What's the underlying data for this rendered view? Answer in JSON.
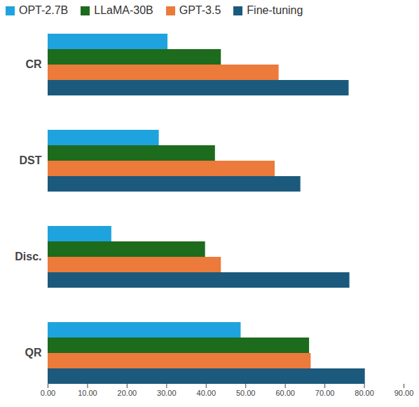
{
  "chart_data": {
    "type": "bar",
    "orientation": "horizontal",
    "categories": [
      "CR",
      "DST",
      "Disc.",
      "QR"
    ],
    "series": [
      {
        "name": "OPT-2.7B",
        "color": "#1fa3de",
        "values": [
          30.3,
          28.1,
          16.1,
          48.8
        ]
      },
      {
        "name": "LLaMA-30B",
        "color": "#1d6b1d",
        "values": [
          43.8,
          42.3,
          39.8,
          66.1
        ]
      },
      {
        "name": "GPT-3.5",
        "color": "#ec7a3a",
        "values": [
          58.4,
          57.4,
          43.8,
          66.5
        ]
      },
      {
        "name": "Fine-tuning",
        "color": "#1b5a7d",
        "values": [
          76.1,
          63.9,
          76.3,
          80.2
        ]
      }
    ],
    "xlim": [
      0,
      90
    ],
    "xticks": [
      {
        "value": 0,
        "label": "0.00"
      },
      {
        "value": 10,
        "label": "10.00"
      },
      {
        "value": 20,
        "label": "20.00"
      },
      {
        "value": 30,
        "label": "30.00"
      },
      {
        "value": 40,
        "label": "40.00"
      },
      {
        "value": 50,
        "label": "50.00"
      },
      {
        "value": 60,
        "label": "60.00"
      },
      {
        "value": 70,
        "label": "70.00"
      },
      {
        "value": 80,
        "label": "80.00"
      },
      {
        "value": 90,
        "label": "90.00"
      }
    ],
    "grid": false,
    "legend": "top"
  }
}
